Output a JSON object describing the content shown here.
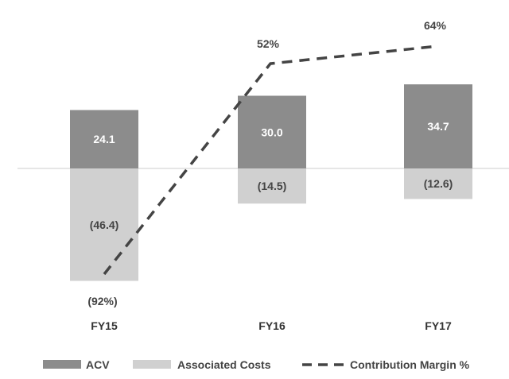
{
  "chart_data": {
    "type": "bar",
    "title": "",
    "xlabel": "",
    "ylabel": "",
    "categories": [
      "FY15",
      "FY16",
      "FY17"
    ],
    "series": [
      {
        "name": "ACV",
        "kind": "bar",
        "values": [
          24.1,
          30.0,
          34.7
        ],
        "labels": [
          "24.1",
          "30.0",
          "34.7"
        ],
        "color": "#8c8c8c",
        "label_color": "#ffffff"
      },
      {
        "name": "Associated Costs",
        "kind": "bar",
        "values": [
          -46.4,
          -14.5,
          -12.6
        ],
        "labels": [
          "(46.4)",
          "(14.5)",
          "(12.6)"
        ],
        "color": "#d0d0d0",
        "label_color": "#444444"
      },
      {
        "name": "Contribution Margin %",
        "kind": "line",
        "style": "dashed",
        "values": [
          -92,
          52,
          64
        ],
        "labels": [
          "(92%)",
          "52%",
          "64%"
        ],
        "color": "#444444"
      }
    ],
    "ylim": [
      -47,
      38
    ],
    "grid": false,
    "legend_position": "bottom"
  }
}
